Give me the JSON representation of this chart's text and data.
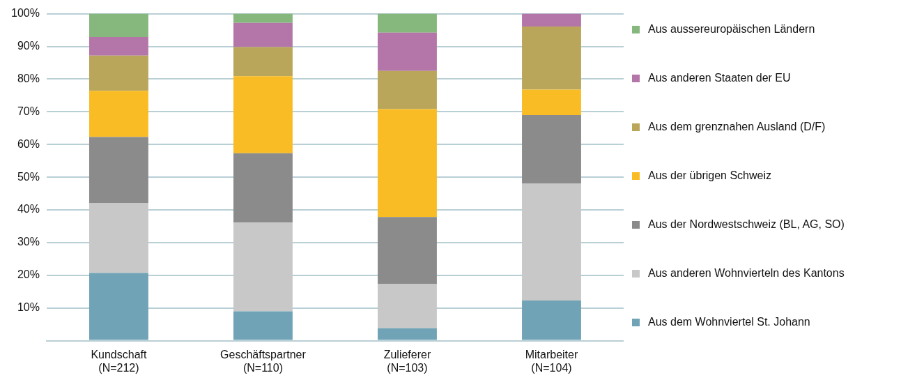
{
  "chart_data": {
    "type": "bar",
    "stacked": true,
    "categories": [
      "Kundschaft\n(N=212)",
      "Geschäftspartner\n(N=110)",
      "Zulieferer\n(N=103)",
      "Mitarbeiter\n(N=104)"
    ],
    "series": [
      {
        "name": "Aus dem Wohnviertel St. Johann",
        "color": "#70a3b5",
        "values": [
          20.7,
          9.0,
          3.8,
          12.3
        ]
      },
      {
        "name": "Aus anderen Wohnvierteln des Kantons",
        "color": "#c8c8c8",
        "values": [
          21.3,
          27.1,
          13.5,
          35.7
        ]
      },
      {
        "name": "Aus der Nordwestschweiz (BL, AG, SO)",
        "color": "#8b8b8b",
        "values": [
          20.3,
          21.2,
          20.5,
          21.0
        ]
      },
      {
        "name": "Aus der übrigen Schweiz",
        "color": "#f9bc24",
        "values": [
          14.1,
          23.6,
          33.0,
          7.8
        ]
      },
      {
        "name": "Aus dem grenznahen Ausland (D/F)",
        "color": "#b9a65b",
        "values": [
          10.8,
          8.9,
          11.7,
          19.3
        ]
      },
      {
        "name": "Aus anderen Staaten der EU",
        "color": "#b476a8",
        "values": [
          5.7,
          7.4,
          11.7,
          3.9
        ]
      },
      {
        "name": "Aus aussereuropäischen Ländern",
        "color": "#86b77c",
        "values": [
          7.1,
          2.8,
          5.8,
          0
        ]
      }
    ],
    "ylim": [
      0,
      100
    ],
    "yticks": [
      {
        "value": 0,
        "label": null
      },
      {
        "value": 10,
        "label": "10%"
      },
      {
        "value": 20,
        "label": "20%"
      },
      {
        "value": 30,
        "label": "30%"
      },
      {
        "value": 40,
        "label": "40%"
      },
      {
        "value": 50,
        "label": "50%"
      },
      {
        "value": 60,
        "label": "60%"
      },
      {
        "value": 70,
        "label": "70%"
      },
      {
        "value": 80,
        "label": "80%"
      },
      {
        "value": 90,
        "label": "90%"
      },
      {
        "value": 100,
        "label": "100%"
      }
    ],
    "grid": "y",
    "legend": "right"
  }
}
